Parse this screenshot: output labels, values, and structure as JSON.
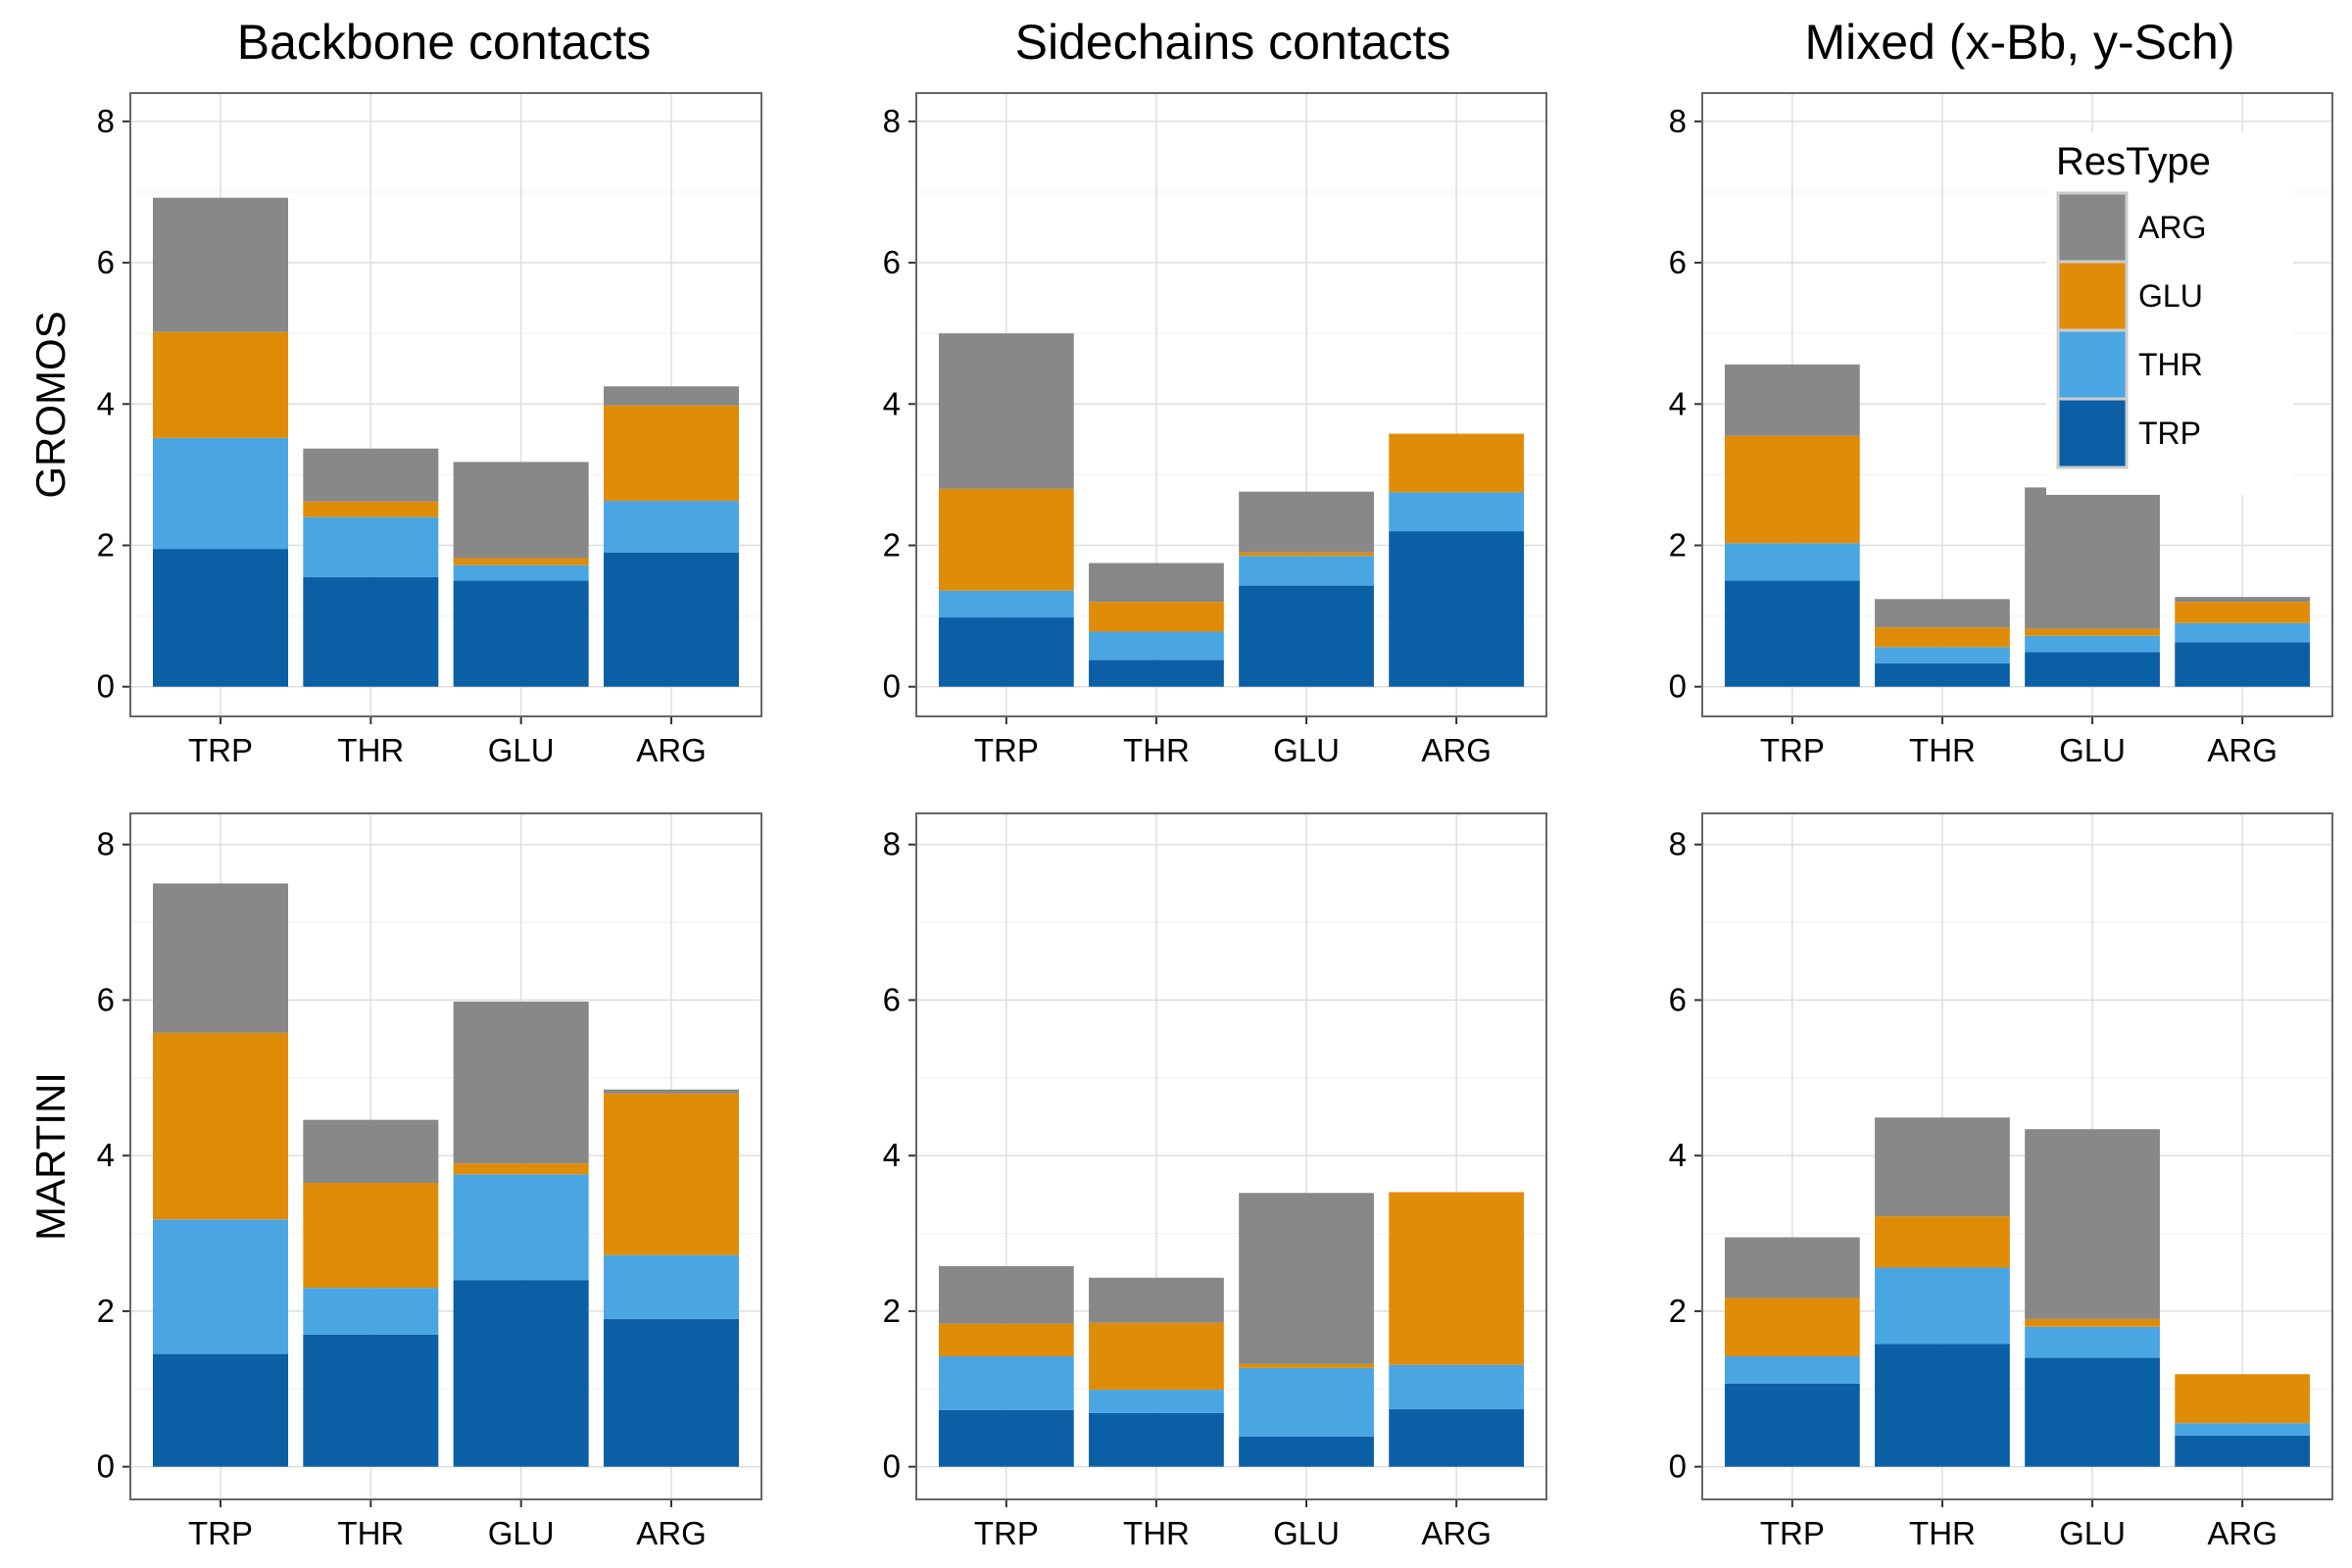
{
  "chart_data": {
    "type": "bar",
    "stacked": true,
    "column_titles": [
      "Backbone contacts",
      "Sidechains contacts",
      "Mixed (x-Bb, y-Sch)"
    ],
    "row_labels": [
      "GROMOS",
      "MARTINI"
    ],
    "categories": [
      "TRP",
      "THR",
      "GLU",
      "ARG"
    ],
    "stack_order": [
      "TRP",
      "THR",
      "GLU",
      "ARG"
    ],
    "y_ticks": [
      "0",
      "2",
      "4",
      "6",
      "8"
    ],
    "ylim": [
      0,
      8.4
    ],
    "grid": true,
    "legend": {
      "title": "ResType",
      "position": "top-right of Mixed GROMOS panel",
      "entries": [
        "ARG",
        "GLU",
        "THR",
        "TRP"
      ]
    },
    "colors": {
      "TRP": "#0b5fa5",
      "THR": "#4aa6e3",
      "GLU": "#df8d09",
      "ARG": "#888888"
    },
    "panels": [
      {
        "row": "GROMOS",
        "col": "Backbone contacts",
        "series": [
          {
            "name": "TRP",
            "values": [
              1.95,
              1.55,
              1.5,
              1.9
            ]
          },
          {
            "name": "THR",
            "values": [
              1.57,
              0.85,
              0.22,
              0.73
            ]
          },
          {
            "name": "GLU",
            "values": [
              1.5,
              0.22,
              0.1,
              1.35
            ]
          },
          {
            "name": "ARG",
            "values": [
              1.9,
              0.75,
              1.36,
              0.27
            ]
          }
        ]
      },
      {
        "row": "GROMOS",
        "col": "Sidechains contacts",
        "series": [
          {
            "name": "TRP",
            "values": [
              0.98,
              0.38,
              1.43,
              2.2
            ]
          },
          {
            "name": "THR",
            "values": [
              0.38,
              0.4,
              0.42,
              0.55
            ]
          },
          {
            "name": "GLU",
            "values": [
              1.44,
              0.42,
              0.05,
              0.83
            ]
          },
          {
            "name": "ARG",
            "values": [
              2.2,
              0.55,
              0.86,
              0.0
            ]
          }
        ]
      },
      {
        "row": "GROMOS",
        "col": "Mixed (x-Bb, y-Sch)",
        "series": [
          {
            "name": "TRP",
            "values": [
              1.5,
              0.33,
              0.49,
              0.63
            ]
          },
          {
            "name": "THR",
            "values": [
              0.53,
              0.23,
              0.23,
              0.27
            ]
          },
          {
            "name": "GLU",
            "values": [
              1.52,
              0.28,
              0.1,
              0.3
            ]
          },
          {
            "name": "ARG",
            "values": [
              1.01,
              0.4,
              2.0,
              0.07
            ]
          }
        ]
      },
      {
        "row": "MARTINI",
        "col": "Backbone contacts",
        "series": [
          {
            "name": "TRP",
            "values": [
              1.45,
              1.7,
              2.4,
              1.9
            ]
          },
          {
            "name": "THR",
            "values": [
              1.73,
              0.6,
              1.36,
              0.82
            ]
          },
          {
            "name": "GLU",
            "values": [
              2.4,
              1.35,
              0.14,
              2.08
            ]
          },
          {
            "name": "ARG",
            "values": [
              1.92,
              0.81,
              2.08,
              0.05
            ]
          }
        ]
      },
      {
        "row": "MARTINI",
        "col": "Sidechains contacts",
        "series": [
          {
            "name": "TRP",
            "values": [
              0.73,
              0.69,
              0.39,
              0.74
            ]
          },
          {
            "name": "THR",
            "values": [
              0.69,
              0.3,
              0.88,
              0.57
            ]
          },
          {
            "name": "GLU",
            "values": [
              0.42,
              0.86,
              0.05,
              2.22
            ]
          },
          {
            "name": "ARG",
            "values": [
              0.74,
              0.58,
              2.2,
              0.0
            ]
          }
        ]
      },
      {
        "row": "MARTINI",
        "col": "Mixed (x-Bb, y-Sch)",
        "series": [
          {
            "name": "TRP",
            "values": [
              1.07,
              1.58,
              1.4,
              0.4
            ]
          },
          {
            "name": "THR",
            "values": [
              0.35,
              0.98,
              0.4,
              0.16
            ]
          },
          {
            "name": "GLU",
            "values": [
              0.75,
              0.66,
              0.1,
              0.63
            ]
          },
          {
            "name": "ARG",
            "values": [
              0.78,
              1.27,
              2.44,
              0.0
            ]
          }
        ]
      }
    ]
  }
}
